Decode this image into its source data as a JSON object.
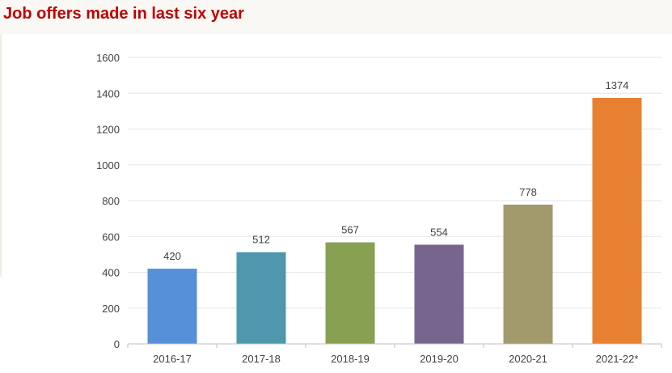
{
  "page": {
    "title": "Job offers made in last six year"
  },
  "chart_data": {
    "type": "bar",
    "title": "Job offers made in last six year",
    "xlabel": "",
    "ylabel": "",
    "categories": [
      "2016-17",
      "2017-18",
      "2018-19",
      "2019-20",
      "2020-21",
      "2021-22*"
    ],
    "values": [
      420,
      512,
      567,
      554,
      778,
      1374
    ],
    "colors": [
      "#5590d8",
      "#4f97aa",
      "#87a052",
      "#77658e",
      "#a29a6d",
      "#e88032"
    ],
    "ylim": [
      0,
      1600
    ],
    "yticks": [
      0,
      200,
      400,
      600,
      800,
      1000,
      1200,
      1400,
      1600
    ],
    "grid": true,
    "data_labels": [
      "420",
      "512",
      "567",
      "554",
      "778",
      "1374"
    ]
  }
}
